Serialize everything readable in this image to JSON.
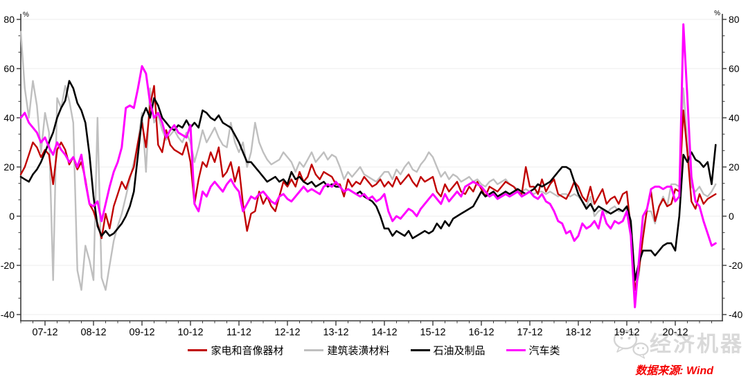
{
  "chart_data": {
    "type": "line",
    "unit": "%",
    "start_month": "2007-06",
    "frequency": "monthly",
    "x_tick_labels": [
      "07-12",
      "08-12",
      "09-12",
      "10-12",
      "11-12",
      "12-12",
      "13-12",
      "14-12",
      "15-12",
      "16-12",
      "17-12",
      "18-12",
      "19-12",
      "20-12"
    ],
    "y_ticks": [
      80,
      60,
      40,
      20,
      0,
      -20,
      -40
    ],
    "ylim": [
      -40,
      80
    ],
    "grid": "horizontal-light",
    "grid_color": "#ededed",
    "axis_color": "#3a3a3a",
    "legend_position": "bottom-center",
    "series": [
      {
        "name": "家电和音像器材",
        "color": "#c00000",
        "width": 2.4,
        "values": [
          17,
          20,
          25,
          30,
          28,
          24,
          27,
          25,
          13,
          27,
          30,
          27,
          21,
          24,
          19,
          22,
          15,
          5,
          2,
          -3,
          -9,
          1,
          -5,
          4,
          9,
          14,
          11,
          16,
          20,
          30,
          38,
          28,
          45,
          53,
          29,
          26,
          35,
          29,
          27,
          26,
          25,
          30,
          22,
          5,
          15,
          22,
          20,
          26,
          22,
          28,
          16,
          18,
          22,
          14,
          20,
          5,
          -6,
          1,
          2,
          10,
          5,
          8,
          4,
          2,
          8,
          14,
          12,
          15,
          12,
          18,
          14,
          16,
          21,
          17,
          15,
          18,
          17,
          16,
          13,
          13,
          8,
          15,
          12,
          14,
          13,
          16,
          14,
          12,
          13,
          15,
          12,
          14,
          12,
          16,
          13,
          15,
          17,
          14,
          12,
          16,
          14,
          15,
          16,
          10,
          8,
          13,
          10,
          12,
          14,
          10,
          9,
          12,
          10,
          14,
          11,
          8,
          12,
          11,
          10,
          12,
          14,
          13,
          12,
          10,
          9,
          20,
          12,
          12,
          9,
          15,
          10,
          13,
          15,
          9,
          8,
          7,
          10,
          14,
          12,
          8,
          6,
          12,
          5,
          8,
          11,
          5,
          7,
          8,
          5,
          9,
          10,
          -5,
          -30,
          -22,
          -9,
          3,
          10,
          -2,
          4,
          7,
          4,
          5,
          11,
          10,
          43,
          26,
          6,
          3,
          9,
          5,
          7,
          8,
          9
        ]
      },
      {
        "name": "建筑装潢材料",
        "color": "#bfbfbf",
        "width": 2.4,
        "values": [
          75,
          52,
          40,
          55,
          45,
          26,
          42,
          34,
          -26,
          48,
          44,
          53,
          47,
          38,
          -22,
          -30,
          -12,
          -18,
          -26,
          40,
          -25,
          -30,
          -20,
          -10,
          -4,
          1,
          8,
          15,
          22,
          30,
          42,
          18,
          52,
          38,
          41,
          35,
          31,
          33,
          35,
          32,
          30,
          34,
          30,
          22,
          28,
          35,
          30,
          33,
          36,
          32,
          29,
          28,
          38,
          30,
          26,
          30,
          20,
          26,
          38,
          30,
          26,
          23,
          21,
          22,
          23,
          26,
          24,
          22,
          18,
          22,
          20,
          23,
          26,
          22,
          24,
          26,
          23,
          25,
          24,
          20,
          15,
          18,
          16,
          18,
          20,
          17,
          16,
          15,
          14,
          16,
          18,
          18,
          15,
          19,
          17,
          20,
          22,
          19,
          18,
          21,
          23,
          26,
          24,
          20,
          16,
          18,
          15,
          17,
          16,
          14,
          15,
          16,
          14,
          15,
          13,
          12,
          14,
          15,
          13,
          14,
          15,
          13,
          12,
          11,
          10,
          11,
          10,
          9,
          10,
          10,
          9,
          10,
          9,
          8,
          9,
          9,
          8,
          9,
          8,
          6,
          4,
          8,
          0,
          2,
          3,
          1,
          3,
          4,
          2,
          2,
          3,
          -6,
          -30,
          -24,
          -6,
          2,
          2,
          -3,
          4,
          8,
          4,
          13,
          13,
          12,
          52,
          30,
          12,
          10,
          12,
          9,
          8,
          10,
          13
        ]
      },
      {
        "name": "石油及制品",
        "color": "#000000",
        "width": 2.6,
        "values": [
          16,
          15,
          14,
          17,
          19,
          22,
          26,
          30,
          34,
          40,
          44,
          47,
          55,
          52,
          46,
          43,
          38,
          25,
          8,
          -4,
          -8,
          -6,
          -8,
          -7,
          -5,
          -3,
          0,
          4,
          10,
          25,
          40,
          44,
          40,
          48,
          45,
          40,
          38,
          36,
          35,
          37,
          36,
          39,
          36,
          38,
          36,
          43,
          42,
          40,
          39,
          41,
          38,
          37,
          36,
          33,
          30,
          26,
          22,
          22,
          20,
          18,
          16,
          14,
          15,
          16,
          14,
          15,
          13,
          18,
          15,
          16,
          14,
          13,
          14,
          12,
          13,
          14,
          12,
          13,
          12,
          12,
          10,
          11,
          10,
          9,
          10,
          8,
          7,
          6,
          4,
          0,
          -5,
          -5,
          -8,
          -6,
          -7,
          -8,
          -6,
          -9,
          -8,
          -7,
          -6,
          -7,
          -6,
          -3,
          -5,
          -2,
          -4,
          -1,
          0,
          1,
          2,
          3,
          4,
          7,
          10,
          8,
          9,
          10,
          8,
          9,
          10,
          9,
          10,
          11,
          10,
          9,
          10,
          11,
          13,
          12,
          13,
          14,
          16,
          18,
          20,
          20,
          19,
          14,
          9,
          6,
          3,
          5,
          2,
          4,
          3,
          2,
          1,
          2,
          3,
          2,
          4,
          -2,
          -26,
          -19,
          -14,
          -14,
          -14,
          -16,
          -14,
          -12,
          -11,
          -11,
          -14,
          0,
          25,
          22,
          26,
          23,
          22,
          20,
          22,
          13,
          29
        ]
      },
      {
        "name": "汽车类",
        "color": "#ff00ff",
        "width": 3,
        "values": [
          40,
          42,
          38,
          36,
          34,
          30,
          32,
          28,
          25,
          30,
          27,
          25,
          22,
          24,
          20,
          25,
          14,
          5,
          4,
          6,
          -2,
          5,
          12,
          18,
          22,
          28,
          44,
          45,
          44,
          52,
          61,
          58,
          46,
          40,
          42,
          38,
          32,
          35,
          37,
          34,
          33,
          32,
          37,
          5,
          2,
          10,
          8,
          12,
          14,
          12,
          10,
          13,
          15,
          12,
          10,
          2,
          5,
          8,
          7,
          9,
          10,
          8,
          6,
          5,
          8,
          9,
          7,
          6,
          8,
          10,
          12,
          10,
          11,
          10,
          9,
          12,
          13,
          12,
          14,
          12,
          10,
          11,
          10,
          9,
          8,
          9,
          7,
          8,
          6,
          7,
          9,
          2,
          -2,
          0,
          -1,
          1,
          3,
          2,
          0,
          3,
          5,
          7,
          9,
          7,
          5,
          9,
          6,
          8,
          10,
          8,
          12,
          13,
          14,
          13,
          12,
          10,
          8,
          9,
          7,
          8,
          9,
          8,
          9,
          10,
          8,
          9,
          10,
          8,
          7,
          9,
          6,
          5,
          2,
          -2,
          -3,
          -7,
          -6,
          -10,
          -8,
          -3,
          -5,
          -4,
          -2,
          -5,
          2,
          -3,
          -5,
          -2,
          -3,
          -2,
          2,
          -8,
          -37,
          -18,
          0,
          3,
          11,
          12,
          12,
          11,
          12,
          12,
          6,
          8,
          78,
          48,
          16,
          6,
          4,
          -2,
          -7,
          -12,
          -11
        ]
      }
    ],
    "draw_order": [
      1,
      0,
      2,
      3
    ]
  },
  "watermark": {
    "brand": "经济机器",
    "icon": "wechat-chat-bubbles-icon"
  },
  "source": {
    "text": "数据来源: Wind",
    "color": "#f40000"
  }
}
